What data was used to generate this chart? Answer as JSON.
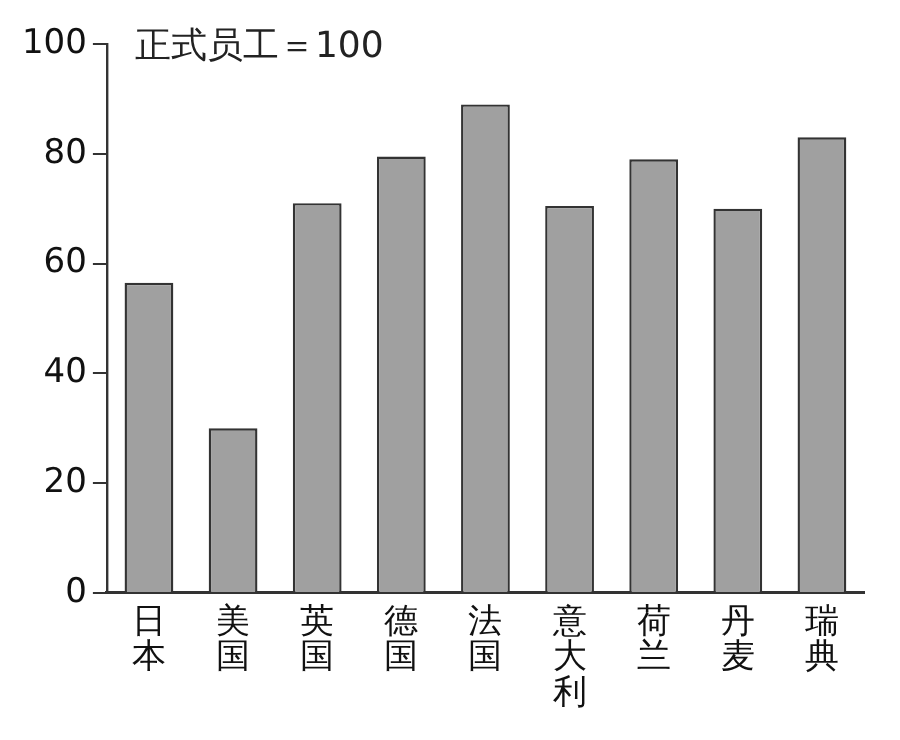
{
  "chart_data": {
    "type": "bar",
    "annotations": [
      "正式员工＝100"
    ],
    "categories": [
      "日本",
      "美国",
      "英国",
      "德国",
      "法国",
      "意大利",
      "荷兰",
      "丹麦",
      "瑞典"
    ],
    "values": [
      56.5,
      30,
      71,
      79.5,
      89,
      70.5,
      79,
      70,
      83
    ],
    "color": "#a0a0a0",
    "ylim": [
      0,
      100
    ],
    "yticks": [
      0,
      20,
      40,
      60,
      80,
      100
    ],
    "grid": false,
    "legend": false
  }
}
